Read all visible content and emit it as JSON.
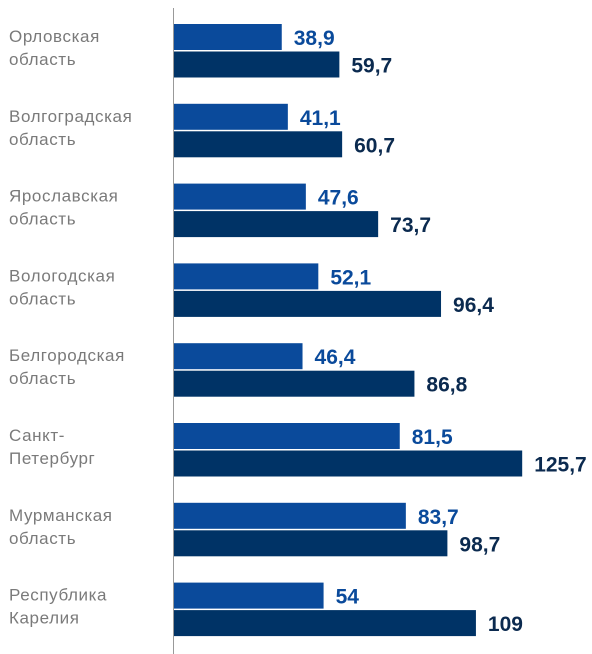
{
  "chart_data": {
    "type": "bar",
    "orientation": "horizontal",
    "categories": [
      "Орловская область",
      "Волгоградская область",
      "Ярославская область",
      "Вологодская область",
      "Белгородская область",
      "Санкт-Петербург",
      "Мурманская область",
      "Республика Карелия"
    ],
    "category_lines": [
      [
        "Орловская",
        "область"
      ],
      [
        "Волгоградская",
        "область"
      ],
      [
        "Ярославская",
        "область"
      ],
      [
        "Вологодская",
        "область"
      ],
      [
        "Белгородская",
        "область"
      ],
      [
        "Санкт-",
        "Петербург"
      ],
      [
        "Мурманская",
        "область"
      ],
      [
        "Республика",
        "Карелия"
      ]
    ],
    "series": [
      {
        "values": [
          38.9,
          41.1,
          47.6,
          52.1,
          46.4,
          81.5,
          83.7,
          54
        ],
        "labels": [
          "38,9",
          "41,1",
          "47,6",
          "52,1",
          "46,4",
          "81,5",
          "83,7",
          "54"
        ],
        "color": "#0a4a9b",
        "label_color": "#0a4a9b"
      },
      {
        "values": [
          59.7,
          60.7,
          73.7,
          96.4,
          86.8,
          125.7,
          98.7,
          109
        ],
        "labels": [
          "59,7",
          "60,7",
          "73,7",
          "96,4",
          "86,8",
          "125,7",
          "98,7",
          "109"
        ],
        "color": "#003366",
        "label_color": "#0b2a4f"
      }
    ],
    "xlim": [
      0,
      135
    ],
    "axis_color": "#999999",
    "legend": "none",
    "grid": false
  }
}
